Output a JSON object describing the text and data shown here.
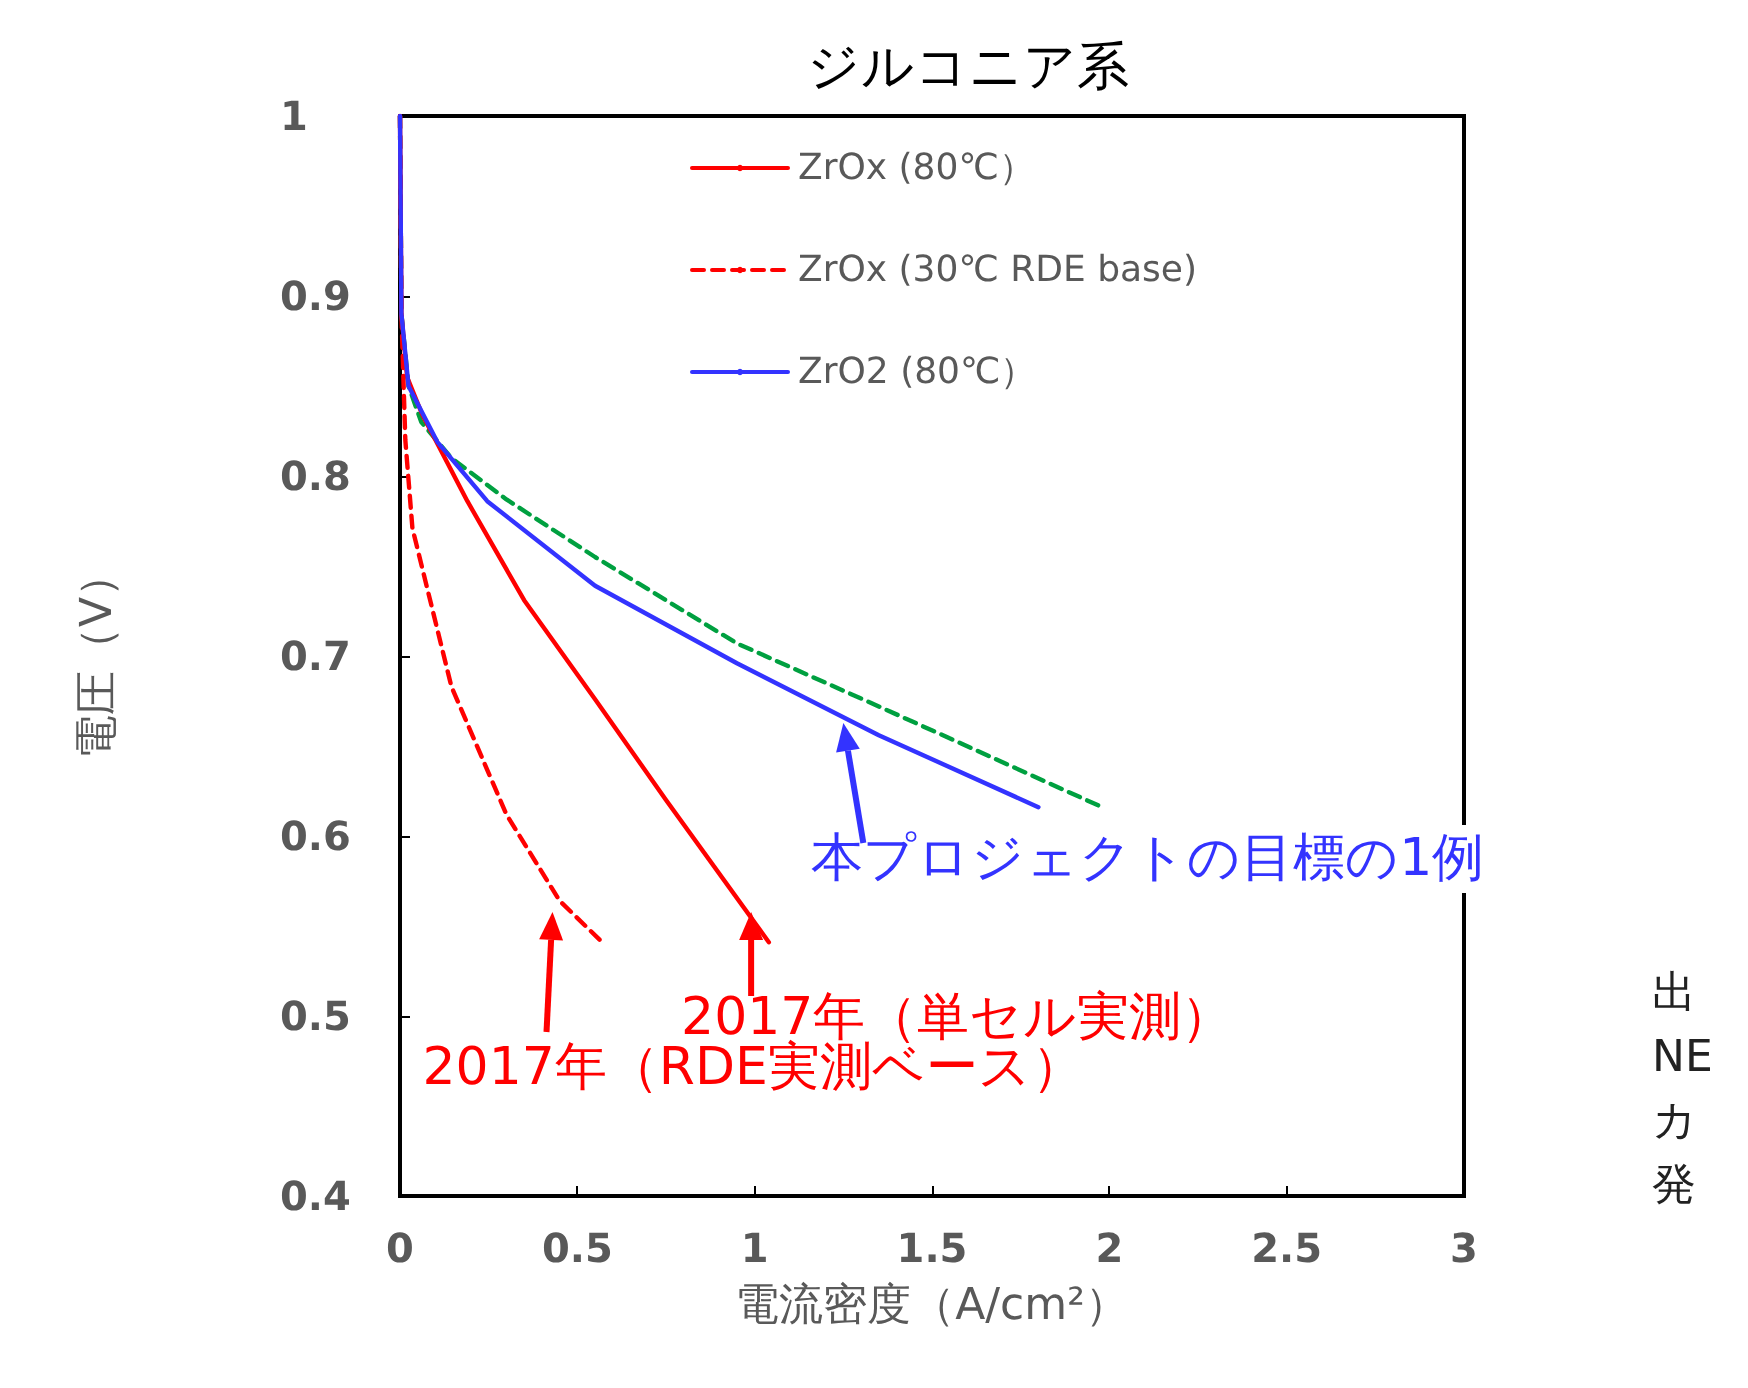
{
  "chart_data": {
    "type": "line",
    "title": "ジルコニア系",
    "xlabel": "電流密度（A/cm²）",
    "ylabel": "電圧（V）",
    "xlim": [
      0,
      3
    ],
    "xticks": [
      0,
      0.5,
      1,
      1.5,
      2,
      2.5,
      3
    ],
    "ylim": [
      0.4,
      1
    ],
    "yticks": [
      0.4,
      0.5,
      0.6,
      0.7,
      0.8,
      0.9,
      1
    ],
    "grid": false,
    "legend": "top",
    "marker": "none",
    "series": [
      {
        "color": "#00a040",
        "line_style": "dashed",
        "x": [
          0,
          0.004,
          0.024,
          0.06,
          0.145,
          0.3,
          0.55,
          0.95,
          1.35,
          1.98
        ],
        "values": [
          1,
          0.89,
          0.85,
          0.83,
          0.81,
          0.787,
          0.755,
          0.707,
          0.672,
          0.616
        ]
      },
      {
        "name": "ZrOx (80℃）",
        "color": "#ff0000",
        "line_style": "solid",
        "x": [
          0,
          0.004,
          0.02,
          0.063,
          0.19,
          0.35,
          0.55,
          0.75,
          1.04
        ],
        "values": [
          1,
          0.89,
          0.855,
          0.834,
          0.786,
          0.731,
          0.676,
          0.62,
          0.541
        ]
      },
      {
        "name": "ZrOx (30℃ RDE base)",
        "color": "#ff0000",
        "line_style": "dashed",
        "x": [
          0,
          0.004,
          0.015,
          0.035,
          0.145,
          0.3,
          0.45,
          0.57
        ],
        "values": [
          1,
          0.89,
          0.82,
          0.771,
          0.683,
          0.612,
          0.564,
          0.541
        ]
      },
      {
        "name": "ZrO2 (80℃）",
        "color": "#3333ff",
        "line_style": "solid",
        "x": [
          0,
          0.004,
          0.024,
          0.105,
          0.246,
          0.55,
          0.95,
          1.35,
          1.8
        ],
        "values": [
          1,
          0.89,
          0.85,
          0.819,
          0.786,
          0.739,
          0.696,
          0.656,
          0.616
        ]
      }
    ],
    "annotations": [
      {
        "text": "本プロジェクトの目標の1例",
        "x": 1.25,
        "y": 0.665
      },
      {
        "text": "2017年（単セル実測）",
        "x": 0.99,
        "y": 0.56
      },
      {
        "text": "2017年（RDE実測ベース）",
        "x": 0.43,
        "y": 0.56
      },
      "出",
      "NE",
      "カ",
      "発"
    ]
  }
}
